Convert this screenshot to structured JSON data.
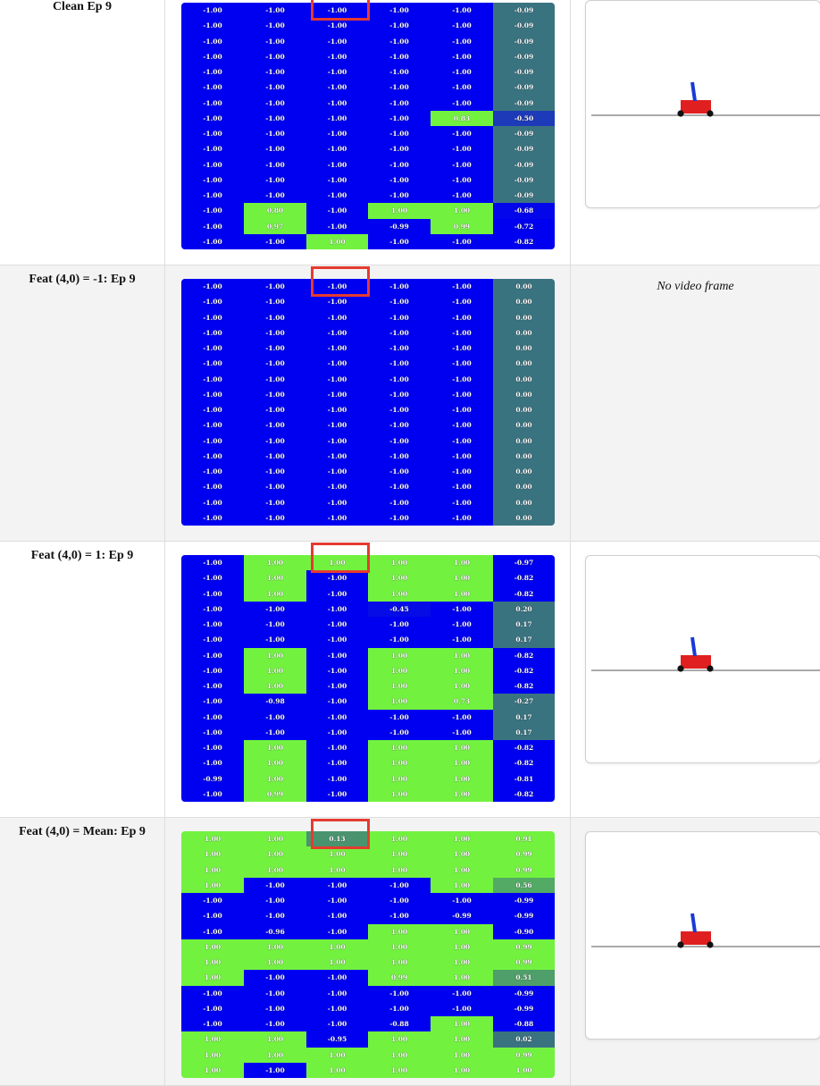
{
  "colors": {
    "neg": "#0000f0",
    "pos": "#72f23f",
    "mid": "#3a7380",
    "highlight": "#e53b30",
    "track": "#777777",
    "cart": "#e02020",
    "pole": "#1a3ad6",
    "wheel": "#111111"
  },
  "panels": [
    {
      "label": "Clean Ep 9",
      "video_text": "",
      "has_video": true,
      "values": [
        [
          "-1.00",
          "-1.00",
          "-1.00",
          "-1.00",
          "-1.00",
          "-0.09"
        ],
        [
          "-1.00",
          "-1.00",
          "-1.00",
          "-1.00",
          "-1.00",
          "-0.09"
        ],
        [
          "-1.00",
          "-1.00",
          "-1.00",
          "-1.00",
          "-1.00",
          "-0.09"
        ],
        [
          "-1.00",
          "-1.00",
          "-1.00",
          "-1.00",
          "-1.00",
          "-0.09"
        ],
        [
          "-1.00",
          "-1.00",
          "-1.00",
          "-1.00",
          "-1.00",
          "-0.09"
        ],
        [
          "-1.00",
          "-1.00",
          "-1.00",
          "-1.00",
          "-1.00",
          "-0.09"
        ],
        [
          "-1.00",
          "-1.00",
          "-1.00",
          "-1.00",
          "-1.00",
          "-0.09"
        ],
        [
          "-1.00",
          "-1.00",
          "-1.00",
          "-1.00",
          "0.83",
          "-0.50"
        ],
        [
          "-1.00",
          "-1.00",
          "-1.00",
          "-1.00",
          "-1.00",
          "-0.09"
        ],
        [
          "-1.00",
          "-1.00",
          "-1.00",
          "-1.00",
          "-1.00",
          "-0.09"
        ],
        [
          "-1.00",
          "-1.00",
          "-1.00",
          "-1.00",
          "-1.00",
          "-0.09"
        ],
        [
          "-1.00",
          "-1.00",
          "-1.00",
          "-1.00",
          "-1.00",
          "-0.09"
        ],
        [
          "-1.00",
          "-1.00",
          "-1.00",
          "-1.00",
          "-1.00",
          "-0.09"
        ],
        [
          "-1.00",
          "0.80",
          "-1.00",
          "1.00",
          "1.00",
          "-0.68"
        ],
        [
          "-1.00",
          "0.97",
          "-1.00",
          "-0.99",
          "0.99",
          "-0.72"
        ],
        [
          "-1.00",
          "-1.00",
          "1.00",
          "-1.00",
          "-1.00",
          "-0.82"
        ]
      ]
    },
    {
      "label": "Feat (4,0) = -1: Ep 9",
      "video_text": "No video frame",
      "has_video": false,
      "values": [
        [
          "-1.00",
          "-1.00",
          "-1.00",
          "-1.00",
          "-1.00",
          "0.00"
        ],
        [
          "-1.00",
          "-1.00",
          "-1.00",
          "-1.00",
          "-1.00",
          "0.00"
        ],
        [
          "-1.00",
          "-1.00",
          "-1.00",
          "-1.00",
          "-1.00",
          "0.00"
        ],
        [
          "-1.00",
          "-1.00",
          "-1.00",
          "-1.00",
          "-1.00",
          "0.00"
        ],
        [
          "-1.00",
          "-1.00",
          "-1.00",
          "-1.00",
          "-1.00",
          "0.00"
        ],
        [
          "-1.00",
          "-1.00",
          "-1.00",
          "-1.00",
          "-1.00",
          "0.00"
        ],
        [
          "-1.00",
          "-1.00",
          "-1.00",
          "-1.00",
          "-1.00",
          "0.00"
        ],
        [
          "-1.00",
          "-1.00",
          "-1.00",
          "-1.00",
          "-1.00",
          "0.00"
        ],
        [
          "-1.00",
          "-1.00",
          "-1.00",
          "-1.00",
          "-1.00",
          "0.00"
        ],
        [
          "-1.00",
          "-1.00",
          "-1.00",
          "-1.00",
          "-1.00",
          "0.00"
        ],
        [
          "-1.00",
          "-1.00",
          "-1.00",
          "-1.00",
          "-1.00",
          "0.00"
        ],
        [
          "-1.00",
          "-1.00",
          "-1.00",
          "-1.00",
          "-1.00",
          "0.00"
        ],
        [
          "-1.00",
          "-1.00",
          "-1.00",
          "-1.00",
          "-1.00",
          "0.00"
        ],
        [
          "-1.00",
          "-1.00",
          "-1.00",
          "-1.00",
          "-1.00",
          "0.00"
        ],
        [
          "-1.00",
          "-1.00",
          "-1.00",
          "-1.00",
          "-1.00",
          "0.00"
        ],
        [
          "-1.00",
          "-1.00",
          "-1.00",
          "-1.00",
          "-1.00",
          "0.00"
        ]
      ]
    },
    {
      "label": "Feat (4,0) = 1: Ep 9",
      "video_text": "",
      "has_video": true,
      "values": [
        [
          "-1.00",
          "1.00",
          "1.00",
          "1.00",
          "1.00",
          "-0.97"
        ],
        [
          "-1.00",
          "1.00",
          "-1.00",
          "1.00",
          "1.00",
          "-0.82"
        ],
        [
          "-1.00",
          "1.00",
          "-1.00",
          "1.00",
          "1.00",
          "-0.82"
        ],
        [
          "-1.00",
          "-1.00",
          "-1.00",
          "-0.45",
          "-1.00",
          "0.20"
        ],
        [
          "-1.00",
          "-1.00",
          "-1.00",
          "-1.00",
          "-1.00",
          "0.17"
        ],
        [
          "-1.00",
          "-1.00",
          "-1.00",
          "-1.00",
          "-1.00",
          "0.17"
        ],
        [
          "-1.00",
          "1.00",
          "-1.00",
          "1.00",
          "1.00",
          "-0.82"
        ],
        [
          "-1.00",
          "1.00",
          "-1.00",
          "1.00",
          "1.00",
          "-0.82"
        ],
        [
          "-1.00",
          "1.00",
          "-1.00",
          "1.00",
          "1.00",
          "-0.82"
        ],
        [
          "-1.00",
          "-0.98",
          "-1.00",
          "1.00",
          "0.73",
          "-0.27"
        ],
        [
          "-1.00",
          "-1.00",
          "-1.00",
          "-1.00",
          "-1.00",
          "0.17"
        ],
        [
          "-1.00",
          "-1.00",
          "-1.00",
          "-1.00",
          "-1.00",
          "0.17"
        ],
        [
          "-1.00",
          "1.00",
          "-1.00",
          "1.00",
          "1.00",
          "-0.82"
        ],
        [
          "-1.00",
          "1.00",
          "-1.00",
          "1.00",
          "1.00",
          "-0.82"
        ],
        [
          "-0.99",
          "1.00",
          "-1.00",
          "1.00",
          "1.00",
          "-0.81"
        ],
        [
          "-1.00",
          "0.99",
          "-1.00",
          "1.00",
          "1.00",
          "-0.82"
        ]
      ]
    },
    {
      "label": "Feat (4,0) = Mean: Ep 9",
      "video_text": "",
      "has_video": true,
      "values": [
        [
          "1.00",
          "1.00",
          "0.13",
          "1.00",
          "1.00",
          "0.91"
        ],
        [
          "1.00",
          "1.00",
          "1.00",
          "1.00",
          "1.00",
          "0.99"
        ],
        [
          "1.00",
          "1.00",
          "1.00",
          "1.00",
          "1.00",
          "0.99"
        ],
        [
          "1.00",
          "-1.00",
          "-1.00",
          "-1.00",
          "1.00",
          "0.56"
        ],
        [
          "-1.00",
          "-1.00",
          "-1.00",
          "-1.00",
          "-1.00",
          "-0.99"
        ],
        [
          "-1.00",
          "-1.00",
          "-1.00",
          "-1.00",
          "-0.99",
          "-0.99"
        ],
        [
          "-1.00",
          "-0.96",
          "-1.00",
          "1.00",
          "1.00",
          "-0.90"
        ],
        [
          "1.00",
          "1.00",
          "1.00",
          "1.00",
          "1.00",
          "0.99"
        ],
        [
          "1.00",
          "1.00",
          "1.00",
          "1.00",
          "1.00",
          "0.99"
        ],
        [
          "1.00",
          "-1.00",
          "-1.00",
          "0.99",
          "1.00",
          "0.51"
        ],
        [
          "-1.00",
          "-1.00",
          "-1.00",
          "-1.00",
          "-1.00",
          "-0.99"
        ],
        [
          "-1.00",
          "-1.00",
          "-1.00",
          "-1.00",
          "-1.00",
          "-0.99"
        ],
        [
          "-1.00",
          "-1.00",
          "-1.00",
          "-0.88",
          "1.00",
          "-0.88"
        ],
        [
          "1.00",
          "1.00",
          "-0.95",
          "1.00",
          "1.00",
          "0.02"
        ],
        [
          "1.00",
          "1.00",
          "1.00",
          "1.00",
          "1.00",
          "0.99"
        ],
        [
          "1.00",
          "-1.00",
          "1.00",
          "1.00",
          "1.00",
          "1.00"
        ]
      ]
    }
  ]
}
